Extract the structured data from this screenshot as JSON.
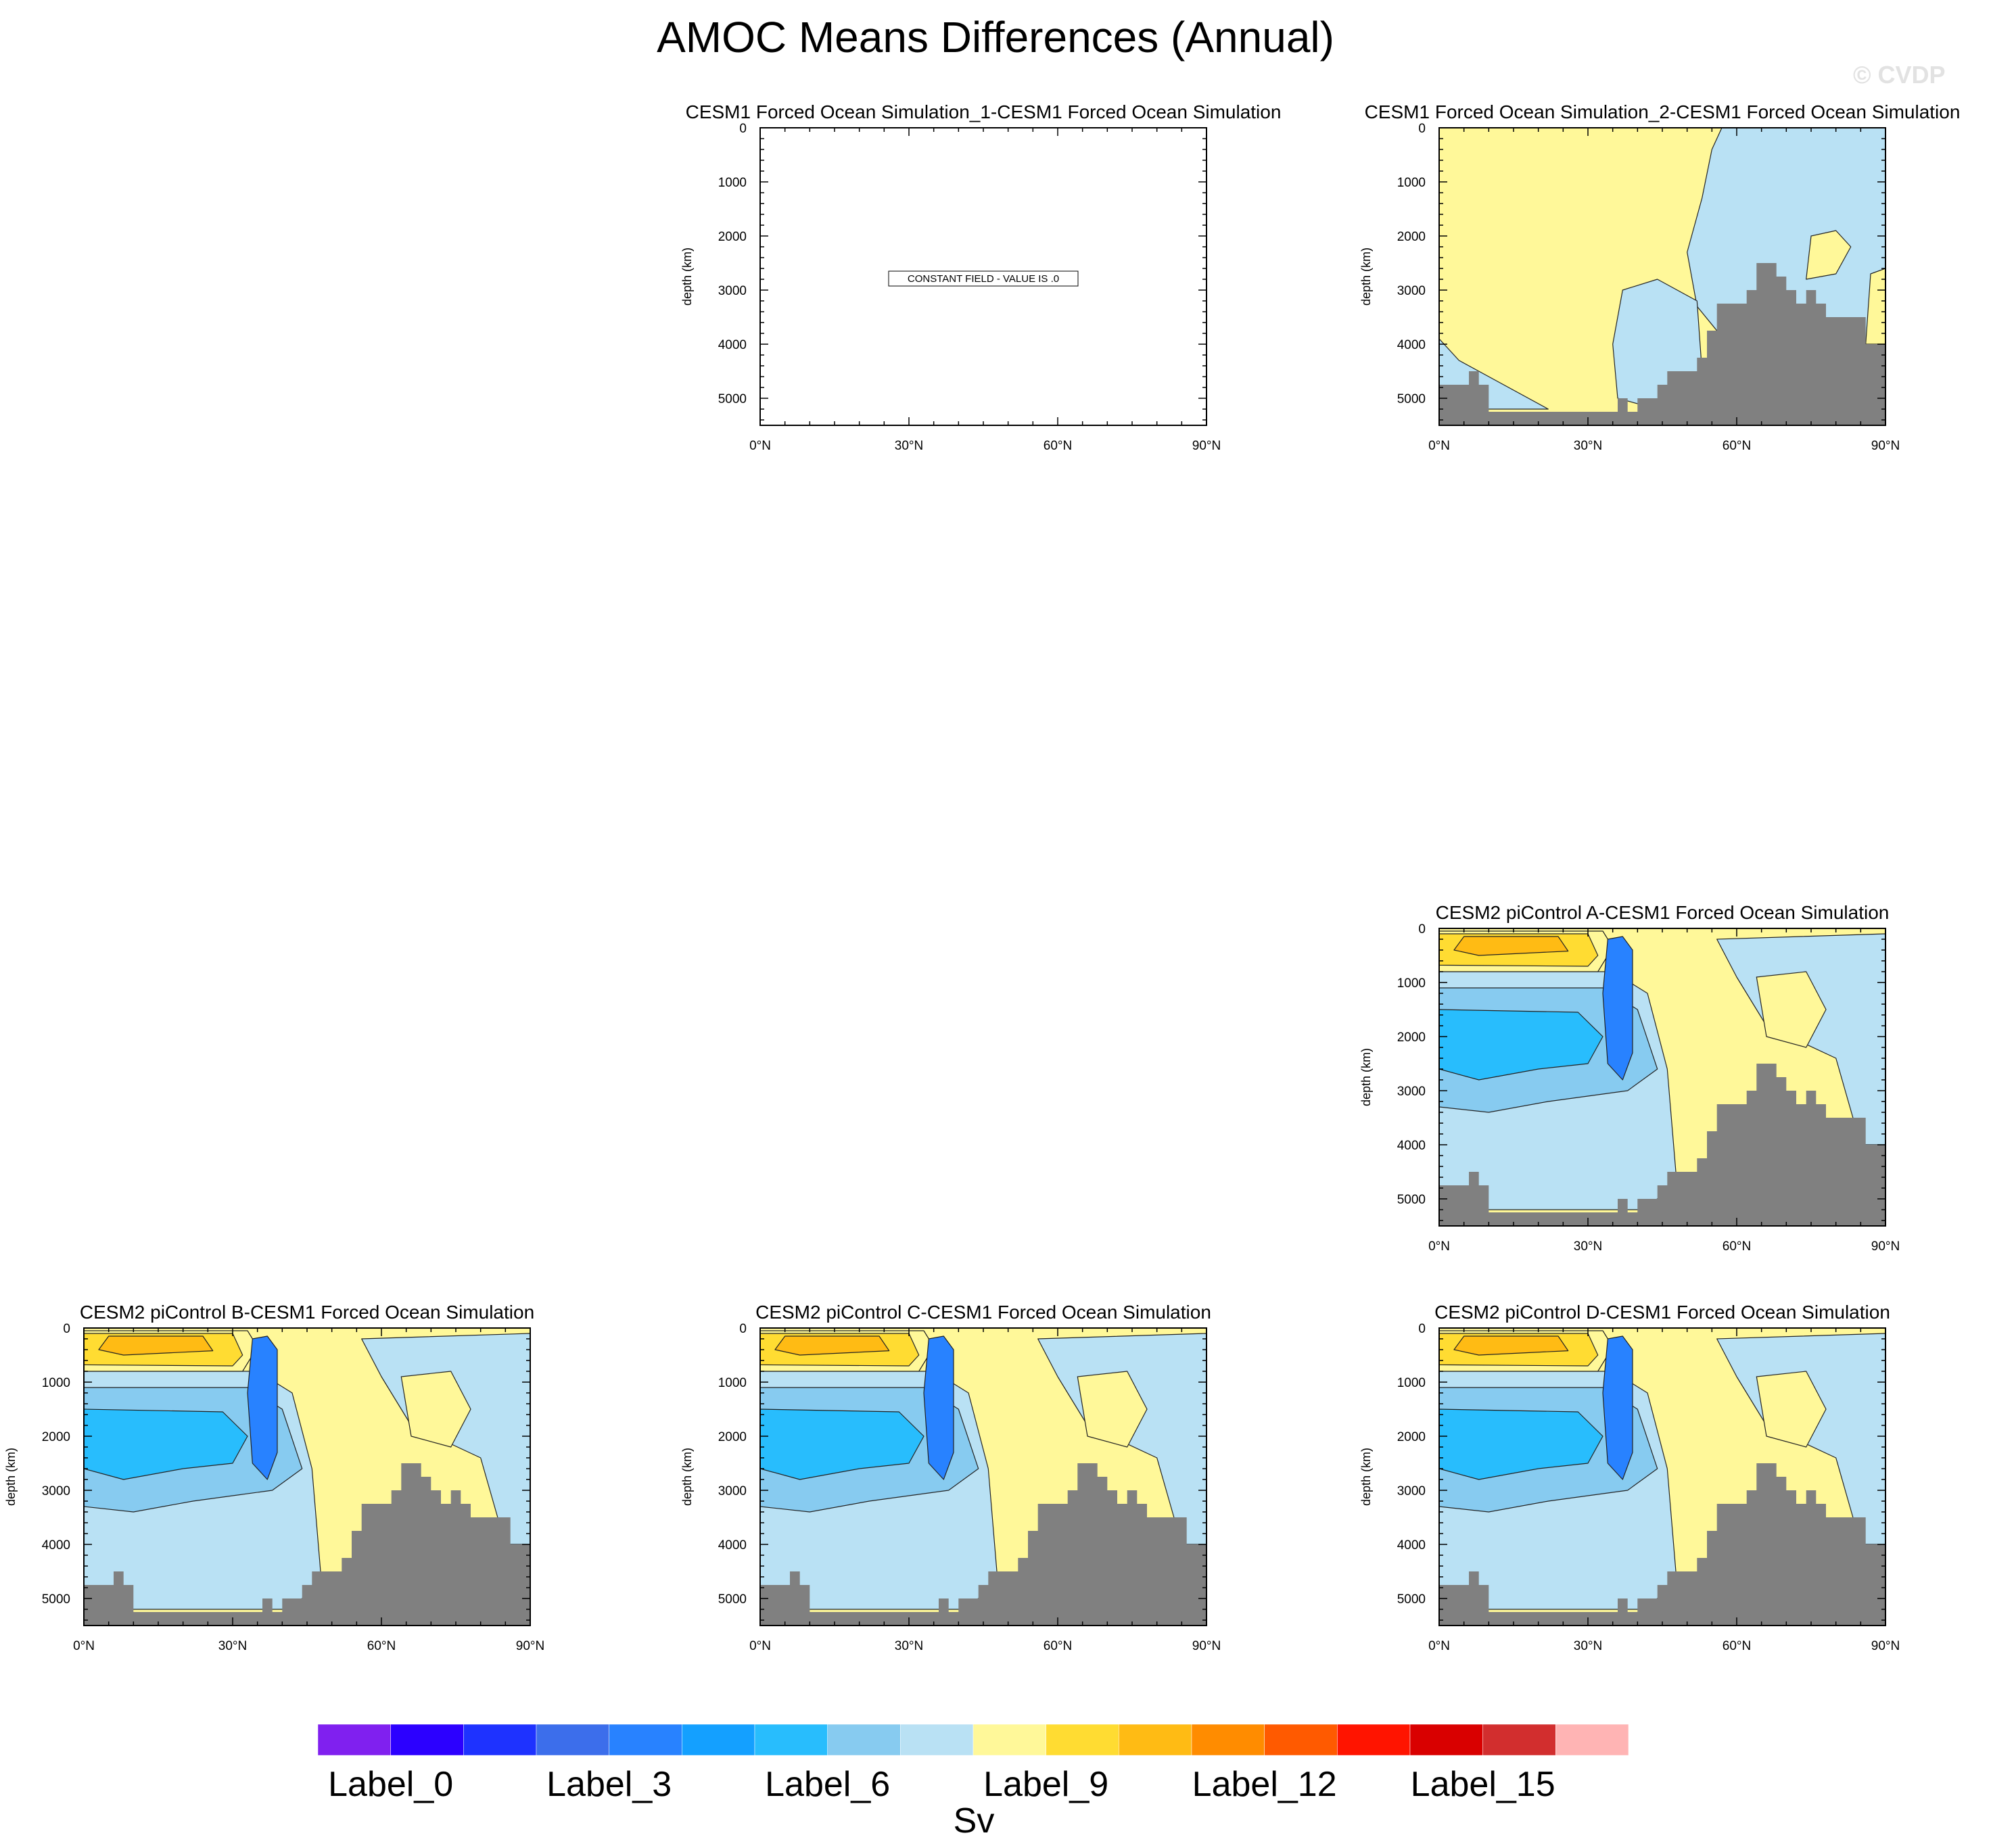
{
  "figure": {
    "title": "AMOC Means Differences (Annual)",
    "watermark": "© CVDP"
  },
  "chart_data": [
    {
      "type": "heatmap",
      "title": "CESM1 Forced Ocean Simulation_1-CESM1 Forced Ocean Simulation",
      "ylabel": "depth (km)",
      "xticks": [
        "0°N",
        "30°N",
        "60°N",
        "90°N"
      ],
      "yticks": [
        "0",
        "1000",
        "2000",
        "3000",
        "4000",
        "5000"
      ],
      "xlim": [
        0,
        90
      ],
      "ylim": [
        5500,
        0
      ],
      "constant_field": true,
      "annotation": "CONSTANT FIELD - VALUE IS .0"
    },
    {
      "type": "heatmap",
      "title": "CESM1 Forced Ocean Simulation_2-CESM1 Forced Ocean Simulation",
      "ylabel": "depth (km)",
      "xticks": [
        "0°N",
        "30°N",
        "60°N",
        "90°N"
      ],
      "yticks": [
        "0",
        "1000",
        "2000",
        "3000",
        "4000",
        "5000"
      ],
      "xlim": [
        0,
        90
      ],
      "ylim": [
        5500,
        0
      ],
      "pattern": "sim2"
    },
    {
      "type": "heatmap",
      "title": "CESM2 piControl A-CESM1 Forced Ocean Simulation",
      "ylabel": "depth (km)",
      "xticks": [
        "0°N",
        "30°N",
        "60°N",
        "90°N"
      ],
      "yticks": [
        "0",
        "1000",
        "2000",
        "3000",
        "4000",
        "5000"
      ],
      "xlim": [
        0,
        90
      ],
      "ylim": [
        5500,
        0
      ],
      "pattern": "picontrol"
    },
    {
      "type": "heatmap",
      "title": "CESM2 piControl B-CESM1 Forced Ocean Simulation",
      "ylabel": "depth (km)",
      "xticks": [
        "0°N",
        "30°N",
        "60°N",
        "90°N"
      ],
      "yticks": [
        "0",
        "1000",
        "2000",
        "3000",
        "4000",
        "5000"
      ],
      "xlim": [
        0,
        90
      ],
      "ylim": [
        5500,
        0
      ],
      "pattern": "picontrol"
    },
    {
      "type": "heatmap",
      "title": "CESM2 piControl C-CESM1 Forced Ocean Simulation",
      "ylabel": "depth (km)",
      "xticks": [
        "0°N",
        "30°N",
        "60°N",
        "90°N"
      ],
      "yticks": [
        "0",
        "1000",
        "2000",
        "3000",
        "4000",
        "5000"
      ],
      "xlim": [
        0,
        90
      ],
      "ylim": [
        5500,
        0
      ],
      "pattern": "picontrol"
    },
    {
      "type": "heatmap",
      "title": "CESM2 piControl D-CESM1 Forced Ocean Simulation",
      "ylabel": "depth (km)",
      "xticks": [
        "0°N",
        "30°N",
        "60°N",
        "90°N"
      ],
      "yticks": [
        "0",
        "1000",
        "2000",
        "3000",
        "4000",
        "5000"
      ],
      "xlim": [
        0,
        90
      ],
      "ylim": [
        5500,
        0
      ],
      "pattern": "picontrol"
    }
  ],
  "bathymetry": {
    "lat": [
      0,
      2,
      4,
      6,
      8,
      10,
      12,
      14,
      16,
      18,
      20,
      22,
      24,
      26,
      28,
      30,
      32,
      34,
      36,
      38,
      40,
      42,
      44,
      46,
      48,
      50,
      52,
      54,
      56,
      58,
      60,
      62,
      64,
      66,
      68,
      70,
      72,
      74,
      76,
      78,
      80,
      82,
      84,
      86,
      88,
      90
    ],
    "depth": [
      4750,
      4750,
      4750,
      4500,
      4750,
      5250,
      5250,
      5250,
      5250,
      5250,
      5250,
      5250,
      5250,
      5250,
      5250,
      5250,
      5250,
      5250,
      5000,
      5250,
      5000,
      5000,
      4750,
      4500,
      4500,
      4500,
      4250,
      3750,
      3250,
      3250,
      3250,
      3000,
      2500,
      2500,
      2750,
      3000,
      3250,
      3000,
      3250,
      3500,
      3500,
      3500,
      3500,
      4000,
      4000,
      4000
    ],
    "color": "#808080"
  },
  "colorbar": {
    "colors": [
      "#8020ef",
      "#2c00ff",
      "#1e32ff",
      "#3c6eeb",
      "#2882ff",
      "#14a0ff",
      "#28bdfd",
      "#87cbf0",
      "#b9e1f4",
      "#fff899",
      "#ffdc32",
      "#ffbb14",
      "#ff8c00",
      "#ff5a00",
      "#ff1400",
      "#d90000",
      "#d22e2e",
      "#ffb4b4"
    ],
    "labels": [
      "Label_0",
      "Label_3",
      "Label_6",
      "Label_9",
      "Label_12",
      "Label_15"
    ],
    "label_positions": [
      0,
      3,
      6,
      9,
      12,
      15
    ],
    "units": "Sv"
  }
}
